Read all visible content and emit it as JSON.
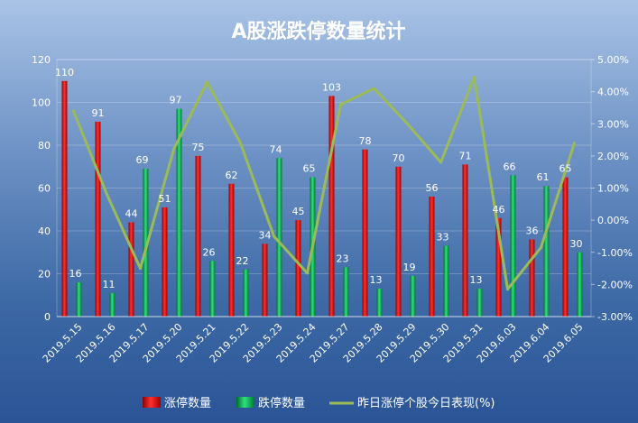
{
  "chart_data": {
    "type": "bar",
    "title": "A股涨跌停数量统计",
    "categories": [
      "2019.5.15",
      "2019.5.16",
      "2019.5.17",
      "2019.5.20",
      "2019.5.21",
      "2019.5.22",
      "2019.5.23",
      "2019.5.24",
      "2019.5.27",
      "2019.5.28",
      "2019.5.29",
      "2019.5.30",
      "2019.5.31",
      "2019.6.03",
      "2019.6.04",
      "2019.6.05"
    ],
    "series": [
      {
        "name": "涨停数量",
        "type": "bar",
        "axis": "left",
        "color": "#e01010",
        "values": [
          110,
          91,
          44,
          51,
          75,
          62,
          34,
          45,
          103,
          78,
          70,
          56,
          71,
          46,
          36,
          65
        ]
      },
      {
        "name": "跌停数量",
        "type": "bar",
        "axis": "left",
        "color": "#12b050",
        "values": [
          16,
          11,
          69,
          97,
          26,
          22,
          74,
          65,
          23,
          13,
          19,
          33,
          13,
          66,
          61,
          30
        ]
      },
      {
        "name": "昨日涨停个股今日表现(%)",
        "type": "line",
        "axis": "right",
        "color": "#9bbb59",
        "values": [
          3.4,
          0.8,
          -1.5,
          2.2,
          4.3,
          2.4,
          -0.5,
          -1.65,
          3.6,
          4.1,
          3.0,
          1.8,
          4.45,
          -2.15,
          -0.85,
          2.4
        ]
      }
    ],
    "y_left": {
      "min": 0,
      "max": 120,
      "ticks": [
        "0",
        "20",
        "40",
        "60",
        "80",
        "100",
        "120"
      ]
    },
    "y_right": {
      "min": -3,
      "max": 5,
      "ticks": [
        "-3.00%",
        "-2.00%",
        "-1.00%",
        "0.00%",
        "1.00%",
        "2.00%",
        "3.00%",
        "4.00%",
        "5.00%"
      ]
    },
    "legend_position": "bottom",
    "grid": true
  },
  "colors": {
    "bar_red": "#e01010",
    "bar_green": "#12b050",
    "line": "#9bbb59",
    "grid": "#ffffff"
  }
}
